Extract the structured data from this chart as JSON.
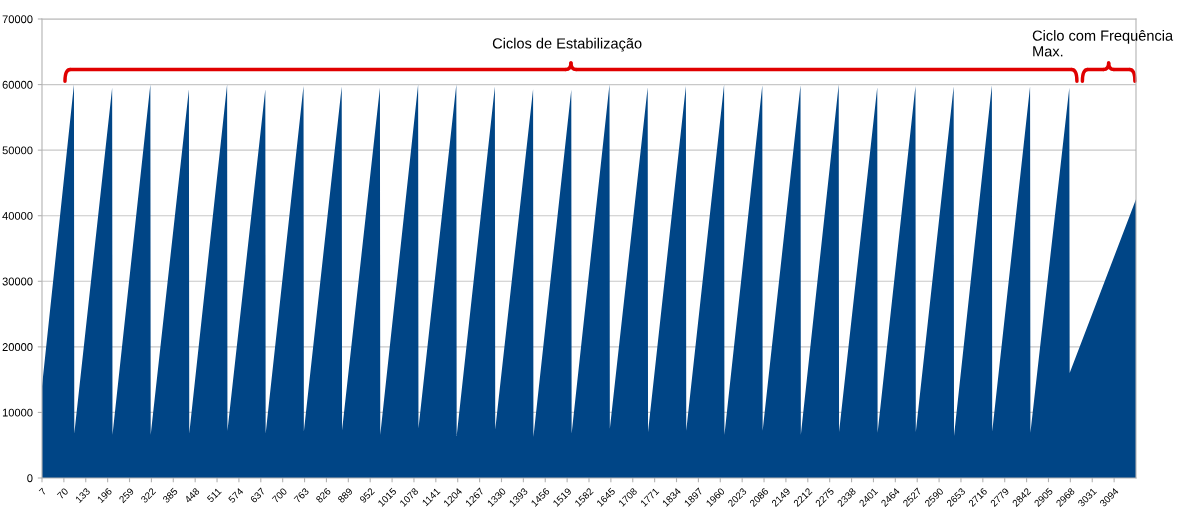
{
  "chart_data": {
    "type": "area",
    "x": [
      7,
      99,
      100,
      209,
      210,
      319,
      320,
      430,
      431,
      540,
      541,
      650,
      651,
      760,
      761,
      870,
      871,
      980,
      981,
      1090,
      1091,
      1200,
      1201,
      1311,
      1312,
      1421,
      1422,
      1531,
      1532,
      1641,
      1642,
      1751,
      1752,
      1861,
      1862,
      1971,
      1972,
      2081,
      2082,
      2191,
      2192,
      2301,
      2302,
      2412,
      2413,
      2522,
      2523,
      2632,
      2633,
      2742,
      2743,
      2852,
      2853,
      2965,
      2966,
      3157
    ],
    "series": [
      {
        "color": "#004586",
        "values": [
          14000,
          60000,
          6800,
          59500,
          6600,
          60000,
          6600,
          59300,
          6800,
          60000,
          7200,
          59300,
          6800,
          59800,
          7100,
          59700,
          7300,
          59500,
          6600,
          60000,
          7600,
          60000,
          6400,
          59700,
          7400,
          59300,
          6300,
          59200,
          6800,
          60000,
          7500,
          59600,
          7000,
          59800,
          7200,
          60000,
          6600,
          59900,
          7200,
          59900,
          6600,
          60000,
          7000,
          59600,
          6900,
          59800,
          7000,
          59700,
          6400,
          59900,
          7100,
          59700,
          6900,
          59500,
          16000,
          42500
        ]
      }
    ],
    "xlim": [
      7,
      3157
    ],
    "xticks": [
      7,
      70,
      133,
      196,
      259,
      322,
      385,
      448,
      511,
      574,
      637,
      700,
      763,
      826,
      889,
      952,
      1015,
      1078,
      1141,
      1204,
      1267,
      1330,
      1393,
      1456,
      1519,
      1582,
      1645,
      1708,
      1771,
      1834,
      1897,
      1960,
      2023,
      2086,
      2149,
      2212,
      2275,
      2338,
      2401,
      2464,
      2527,
      2590,
      2653,
      2716,
      2779,
      2842,
      2905,
      2968,
      3031,
      3094
    ],
    "ylim": [
      0,
      70000
    ],
    "yticks": [
      0,
      10000,
      20000,
      30000,
      40000,
      50000,
      60000,
      70000
    ],
    "grid": "y",
    "annotations": [
      "Ciclos de Estabilização",
      "Ciclo com Frequência\nMax."
    ]
  }
}
